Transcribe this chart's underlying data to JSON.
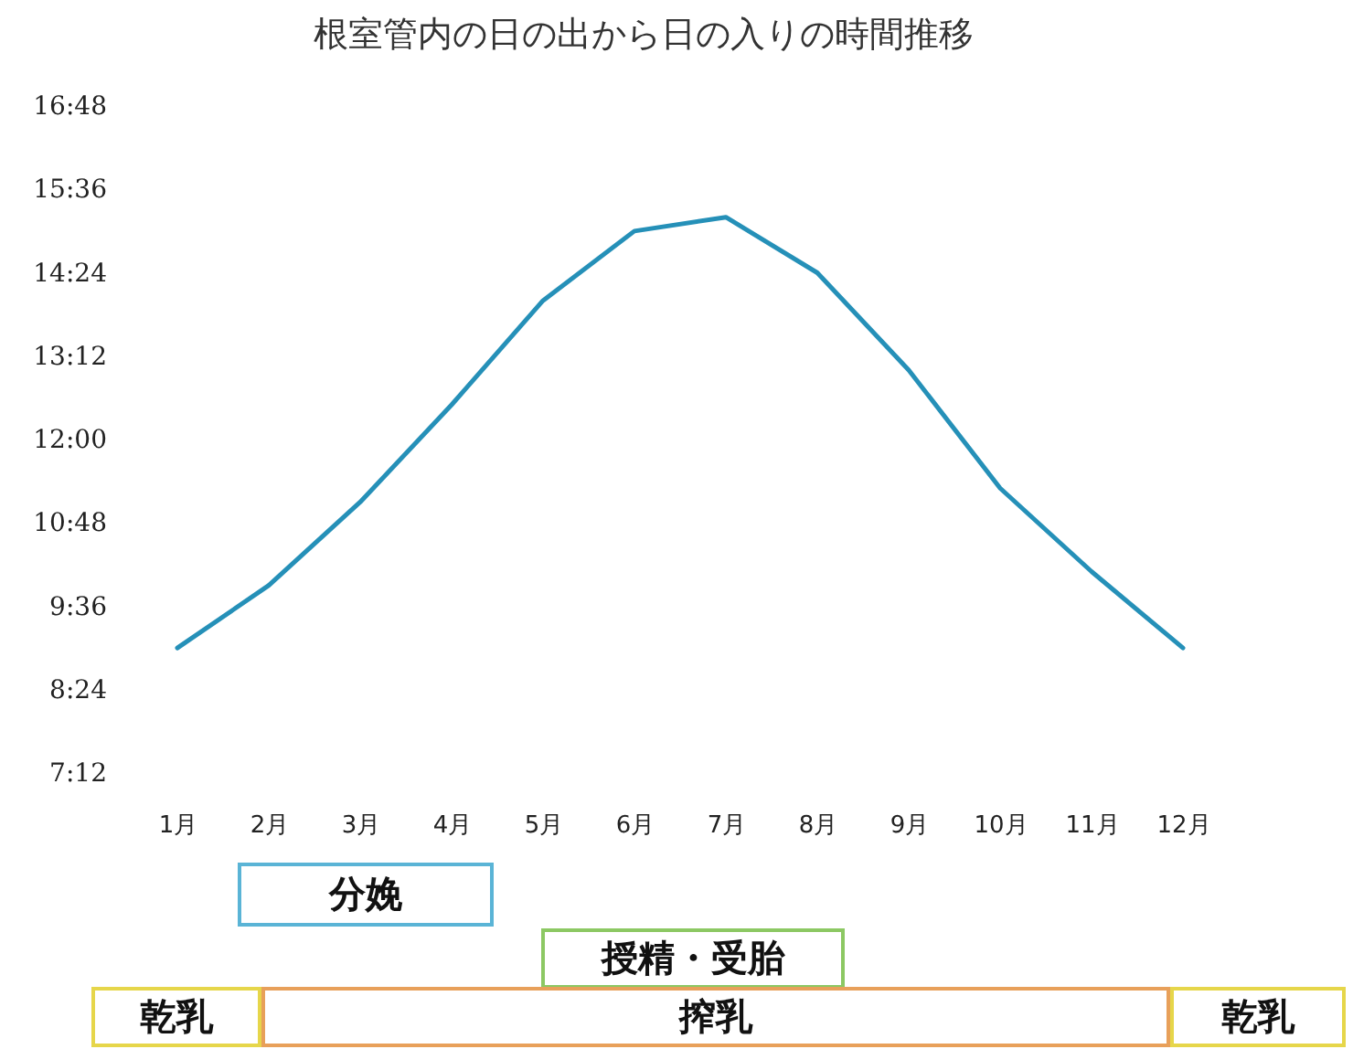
{
  "chart_data": {
    "type": "line",
    "title": "根室管内の日の出から日の入りの時間推移",
    "categories": [
      "1月",
      "2月",
      "3月",
      "4月",
      "5月",
      "6月",
      "7月",
      "8月",
      "9月",
      "10月",
      "11月",
      "12月"
    ],
    "values": [
      9.0,
      9.9,
      11.1,
      12.5,
      14.0,
      15.0,
      15.2,
      14.4,
      13.0,
      11.3,
      10.1,
      9.0
    ],
    "color": "#2590b8",
    "ylim": [
      7.2,
      16.8
    ],
    "yticks": [
      {
        "value": 7.2,
        "label": "7:12"
      },
      {
        "value": 8.4,
        "label": "8:24"
      },
      {
        "value": 9.6,
        "label": "9:36"
      },
      {
        "value": 10.8,
        "label": "10:48"
      },
      {
        "value": 12,
        "label": "12:00"
      },
      {
        "value": 13.2,
        "label": "13:12"
      },
      {
        "value": 14.4,
        "label": "14:24"
      },
      {
        "value": 15.6,
        "label": "15:36"
      },
      {
        "value": 16.8,
        "label": "16:48"
      }
    ],
    "annotations": [
      "分娩",
      "授精・受胎",
      "乾乳",
      "搾乳",
      "乾乳"
    ]
  }
}
